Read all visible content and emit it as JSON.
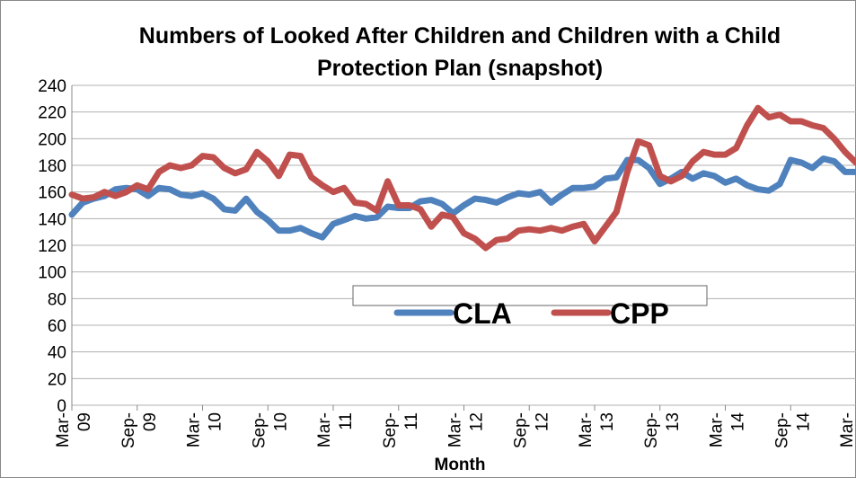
{
  "chart_data": {
    "type": "line",
    "title": "Numbers of Looked After Children and Children with a Child Protection Plan (snapshot)",
    "x_label": "Month",
    "categories": [
      "Mar-09",
      null,
      null,
      null,
      null,
      null,
      "Sep-09",
      null,
      null,
      null,
      null,
      null,
      "Mar-10",
      null,
      null,
      null,
      null,
      null,
      "Sep-10",
      null,
      null,
      null,
      null,
      null,
      "Mar-11",
      null,
      null,
      null,
      null,
      null,
      "Sep-11",
      null,
      null,
      null,
      null,
      null,
      "Mar-12",
      null,
      null,
      null,
      null,
      null,
      "Sep-12",
      null,
      null,
      null,
      null,
      null,
      "Mar-13",
      null,
      null,
      null,
      null,
      null,
      "Sep-13",
      null,
      null,
      null,
      null,
      null,
      "Mar-14",
      null,
      null,
      null,
      null,
      null,
      "Sep-14",
      null,
      null,
      null,
      null,
      null,
      "Mar-"
    ],
    "series": [
      {
        "name": "CLA",
        "color": "#4f81bd",
        "values": [
          143,
          152,
          155,
          157,
          162,
          163,
          162,
          157,
          163,
          162,
          158,
          157,
          159,
          155,
          147,
          146,
          155,
          145,
          139,
          131,
          131,
          133,
          129,
          126,
          136,
          139,
          142,
          140,
          141,
          149,
          148,
          148,
          153,
          154,
          151,
          144,
          150,
          155,
          154,
          152,
          156,
          159,
          158,
          160,
          152,
          158,
          163,
          163,
          164,
          170,
          171,
          184,
          184,
          178,
          166,
          170,
          175,
          170,
          174,
          172,
          167,
          170,
          165,
          162,
          161,
          166,
          184,
          182,
          178,
          185,
          183,
          175,
          175
        ]
      },
      {
        "name": "CPP",
        "color": "#c0504d",
        "values": [
          158,
          155,
          156,
          160,
          157,
          160,
          165,
          162,
          175,
          180,
          178,
          180,
          187,
          186,
          178,
          174,
          177,
          190,
          183,
          172,
          188,
          187,
          171,
          165,
          160,
          163,
          152,
          151,
          146,
          168,
          150,
          150,
          147,
          134,
          143,
          141,
          129,
          125,
          118,
          124,
          125,
          131,
          132,
          131,
          133,
          131,
          134,
          136,
          123,
          134,
          145,
          175,
          198,
          195,
          172,
          168,
          172,
          183,
          190,
          188,
          188,
          193,
          210,
          223,
          216,
          218,
          213,
          213,
          210,
          208,
          200,
          190,
          182
        ]
      }
    ],
    "ylim": [
      0,
      240
    ],
    "yticks": [
      0,
      20,
      40,
      60,
      80,
      100,
      120,
      140,
      160,
      180,
      200,
      220,
      240
    ],
    "grid": true,
    "legend": "center"
  }
}
